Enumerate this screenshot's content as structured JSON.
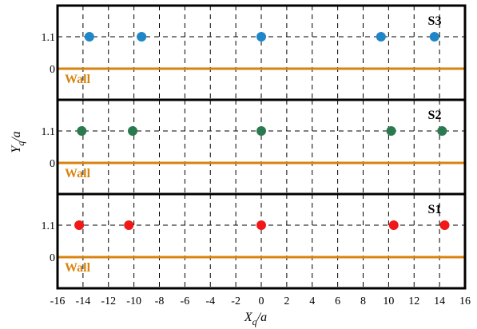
{
  "chart_data": {
    "type": "scatter",
    "xlabel": {
      "main": "X",
      "sub": "q",
      "rest": "/a"
    },
    "ylabel": {
      "main": "Y",
      "sub": "q",
      "rest": "/a"
    },
    "xlim": [
      -16,
      16
    ],
    "x_ticks": [
      -16,
      -14,
      -12,
      -10,
      -8,
      -6,
      -4,
      -2,
      0,
      2,
      4,
      6,
      8,
      10,
      12,
      14,
      16
    ],
    "y_tick_labels": [
      "1.1",
      "0"
    ],
    "grid": true,
    "wall": {
      "label": "Wall",
      "y": 0,
      "color": "#d9830f"
    },
    "panels": [
      {
        "label": "S3",
        "color": "#1f86c8",
        "points": [
          {
            "x": -13.5,
            "y": 1.1
          },
          {
            "x": -9.4,
            "y": 1.1
          },
          {
            "x": 0,
            "y": 1.1
          },
          {
            "x": 9.4,
            "y": 1.1
          },
          {
            "x": 13.6,
            "y": 1.1
          }
        ]
      },
      {
        "label": "S2",
        "color": "#2a7a4e",
        "points": [
          {
            "x": -14.1,
            "y": 1.1
          },
          {
            "x": -10.1,
            "y": 1.1
          },
          {
            "x": 0,
            "y": 1.1
          },
          {
            "x": 10.2,
            "y": 1.1
          },
          {
            "x": 14.2,
            "y": 1.1
          }
        ]
      },
      {
        "label": "S1",
        "color": "#f01818",
        "points": [
          {
            "x": -14.3,
            "y": 1.1
          },
          {
            "x": -10.4,
            "y": 1.1
          },
          {
            "x": 0,
            "y": 1.1
          },
          {
            "x": 10.4,
            "y": 1.1
          },
          {
            "x": 14.4,
            "y": 1.1
          }
        ]
      }
    ]
  }
}
